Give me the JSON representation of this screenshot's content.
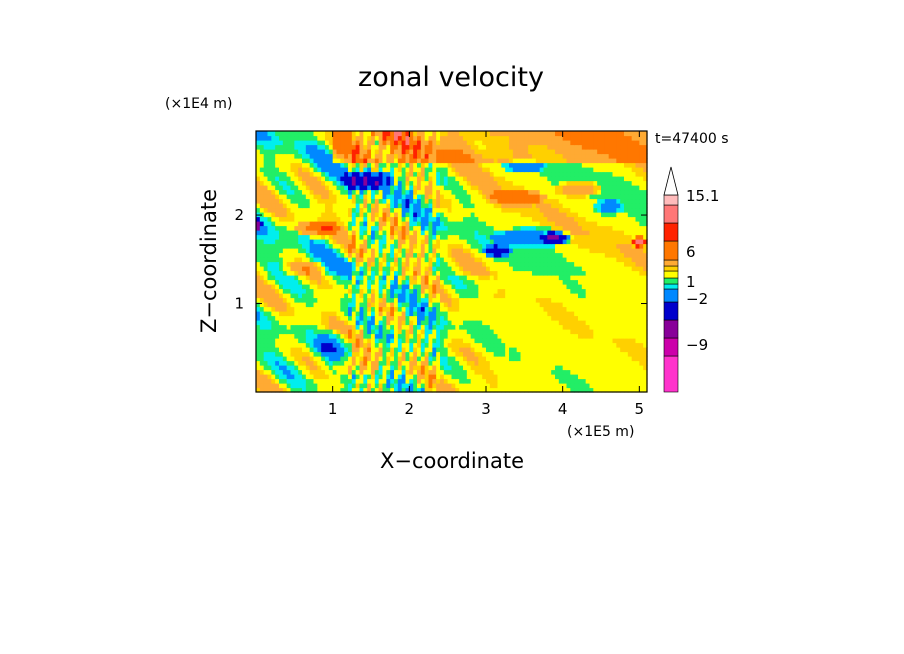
{
  "chart_data": {
    "type": "heatmap",
    "title": "zonal velocity",
    "xlabel": "X−coordinate",
    "ylabel": "Z−coordinate",
    "x_unit": "(×1E5 m)",
    "y_unit": "(×1E4 m)",
    "time_label": "t=47400 s",
    "xlim": [
      0,
      5.1
    ],
    "ylim": [
      0,
      2.95
    ],
    "x_ticks": [
      "1",
      "2",
      "3",
      "4",
      "5"
    ],
    "x_tick_values": [
      1,
      2,
      3,
      4,
      5
    ],
    "y_ticks": [
      "1",
      "2"
    ],
    "y_tick_values": [
      1,
      2
    ],
    "colorbar": {
      "labels": [
        "15.1",
        "6",
        "1",
        "−2",
        "−9"
      ],
      "colors": [
        "#ff33cc",
        "#cc00aa",
        "#880099",
        "#0000cc",
        "#0088ff",
        "#00eeee",
        "#22ee66",
        "#ffff00",
        "#ffd000",
        "#ffaa33",
        "#ff7700",
        "#ff2200",
        "#ff7777",
        "#ffbbbb"
      ],
      "over_color": "#ffffff"
    },
    "field_regions": [
      {
        "kind": "background",
        "value": 0.3
      },
      {
        "kind": "band",
        "x0": 0.0,
        "x1": 2.5,
        "z0": 0.0,
        "z1": 2.95,
        "value": -0.2
      },
      {
        "kind": "band",
        "x0": 2.5,
        "x1": 5.1,
        "z0": 0.0,
        "z1": 1.3,
        "value": 0.3
      },
      {
        "kind": "band",
        "x0": 1.0,
        "x1": 5.1,
        "z0": 2.6,
        "z1": 2.95,
        "value": 2.5
      },
      {
        "kind": "blob",
        "x": 1.45,
        "z": 2.4,
        "rx": 0.35,
        "rz": 0.12,
        "value": -6.0
      },
      {
        "kind": "blob",
        "x": 3.6,
        "z": 1.75,
        "rx": 0.55,
        "rz": 0.12,
        "value": -3.5
      },
      {
        "kind": "blob",
        "x": 3.15,
        "z": 1.6,
        "rx": 0.2,
        "rz": 0.07,
        "value": -6.0
      },
      {
        "kind": "blob",
        "x": 3.9,
        "z": 1.75,
        "rx": 0.2,
        "rz": 0.07,
        "value": -6.0
      },
      {
        "kind": "blob",
        "x": 3.5,
        "z": 2.55,
        "rx": 0.3,
        "rz": 0.08,
        "value": -3.0
      },
      {
        "kind": "blob",
        "x": 1.0,
        "z": 0.55,
        "rx": 0.25,
        "rz": 0.15,
        "value": -3.0
      },
      {
        "kind": "blob",
        "x": 4.6,
        "z": 2.1,
        "rx": 0.2,
        "rz": 0.1,
        "value": -3.0
      },
      {
        "kind": "blob",
        "x": 5.0,
        "z": 1.7,
        "rx": 0.12,
        "rz": 0.06,
        "value": 6.0
      },
      {
        "kind": "blob",
        "x": 0.8,
        "z": 1.85,
        "rx": 0.3,
        "rz": 0.1,
        "value": 4.0
      },
      {
        "kind": "blob",
        "x": 3.4,
        "z": 2.2,
        "rx": 0.4,
        "rz": 0.1,
        "value": 3.0
      },
      {
        "kind": "blob",
        "x": 4.2,
        "z": 2.3,
        "rx": 0.3,
        "rz": 0.1,
        "value": 3.0
      },
      {
        "kind": "blob",
        "x": 0.6,
        "z": 1.4,
        "rx": 0.3,
        "rz": 0.1,
        "value": 2.0
      },
      {
        "kind": "blob",
        "x": 1.3,
        "z": 0.3,
        "rx": 0.3,
        "rz": 0.12,
        "value": 2.5
      },
      {
        "kind": "blob",
        "x": 0.0,
        "z": 1.9,
        "rx": 0.08,
        "rz": 0.1,
        "value": -6.0
      },
      {
        "kind": "blob",
        "x": 2.1,
        "z": 0.7,
        "rx": 0.5,
        "rz": 0.25,
        "value": -0.8
      },
      {
        "kind": "blob",
        "x": 2.8,
        "z": 1.2,
        "rx": 0.4,
        "rz": 0.15,
        "value": -0.8
      }
    ]
  }
}
